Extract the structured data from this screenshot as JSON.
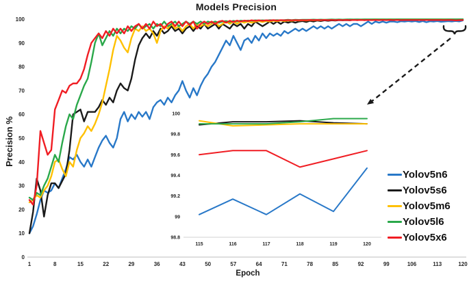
{
  "title": "Models Precision",
  "colors": {
    "axis_line": "#c9c9c9",
    "inset_axis_line": "#d9d9d9",
    "tick_text": "#262626",
    "annotation": "#1a1a1a"
  },
  "legend": {
    "items": [
      {
        "label": "Yolov5n6",
        "color": "#2878c8"
      },
      {
        "label": "Yolov5s6",
        "color": "#1a1a1a"
      },
      {
        "label": "Yolov5m6",
        "color": "#ffc000"
      },
      {
        "label": "Yolov5l6",
        "color": "#2aa84a"
      },
      {
        "label": "Yolov5x6",
        "color": "#f01d23"
      }
    ]
  },
  "chart_data": [
    {
      "type": "line",
      "title": "Models Precision",
      "xlabel": "Epoch",
      "ylabel": "Precision %",
      "xlim": [
        1,
        120
      ],
      "ylim": [
        0,
        100
      ],
      "grid": false,
      "legend_position": "right",
      "x_start": 1,
      "x_step": 1,
      "x_ticks": [
        1,
        8,
        15,
        22,
        29,
        36,
        43,
        50,
        57,
        64,
        71,
        78,
        85,
        92,
        99,
        106,
        113,
        120
      ],
      "y_ticks": [
        0,
        10,
        20,
        30,
        40,
        50,
        60,
        70,
        80,
        90,
        100
      ],
      "series": [
        {
          "name": "Yolov5n6",
          "color": "#2878c8",
          "values": [
            10,
            13,
            18,
            24,
            28,
            27,
            28,
            31,
            29,
            33,
            37,
            42,
            41,
            43,
            40,
            38,
            41,
            38,
            42,
            46,
            49,
            51,
            48,
            46,
            50,
            58,
            61,
            57,
            60,
            58,
            61,
            59,
            61,
            58,
            63,
            65,
            66,
            64,
            67,
            65,
            68,
            70,
            74,
            70,
            67,
            71,
            68,
            72,
            75,
            77,
            80,
            82,
            85,
            88,
            91,
            89,
            93,
            90,
            87,
            91,
            92,
            90,
            93,
            91,
            94,
            92,
            94,
            93,
            94,
            93,
            95,
            94,
            95,
            96,
            95,
            96,
            95,
            96,
            97,
            96,
            97,
            96,
            97,
            96,
            97,
            98,
            97,
            98,
            97,
            98,
            98,
            97,
            98,
            99,
            98,
            99,
            98.5,
            99,
            98.5,
            99,
            99,
            98.7,
            99.1,
            99,
            99.2,
            99,
            99.2,
            98.8,
            99.2,
            98.7,
            99.1,
            99,
            99.2,
            98.9,
            99.02,
            99.17,
            99.02,
            99.22,
            99.05,
            99.47
          ]
        },
        {
          "name": "Yolov5s6",
          "color": "#1a1a1a",
          "values": [
            10,
            19,
            33,
            28,
            17,
            26,
            31,
            31,
            29,
            32,
            35,
            45,
            60,
            61,
            62,
            57,
            61,
            61,
            61,
            63,
            66,
            64,
            67,
            65,
            70,
            73,
            71,
            70,
            75,
            83,
            89,
            92,
            94,
            92,
            95,
            93,
            96,
            94,
            95,
            97,
            95,
            96,
            94,
            96,
            97,
            95,
            97,
            96,
            98,
            96,
            97,
            98,
            96,
            98,
            97,
            96,
            98,
            97,
            98,
            96,
            98,
            97,
            99,
            98,
            97,
            98,
            99,
            98,
            99,
            98,
            99,
            98.5,
            99,
            98.5,
            99,
            99.2,
            98.8,
            99.3,
            99,
            99.4,
            99.2,
            99.5,
            99.3,
            99.5,
            99.4,
            99.6,
            99.5,
            99.6,
            99.5,
            99.7,
            99.6,
            99.7,
            99.6,
            99.7,
            99.8,
            99.7,
            99.8,
            99.75,
            99.8,
            99.85,
            99.8,
            99.85,
            99.9,
            99.85,
            99.9,
            99.88,
            99.9,
            99.89,
            99.9,
            99.9,
            99.9,
            99.9,
            99.9,
            99.9,
            99.89,
            99.92,
            99.92,
            99.93,
            99.91,
            99.9
          ]
        },
        {
          "name": "Yolov5m6",
          "color": "#ffc000",
          "values": [
            23,
            24,
            26,
            25,
            28,
            30,
            34,
            40,
            41,
            37,
            34,
            40,
            38,
            45,
            50,
            52,
            55,
            53,
            56,
            60,
            65,
            72,
            79,
            87,
            93,
            91,
            88,
            86,
            92,
            96,
            95,
            97,
            95,
            96,
            94,
            90,
            95,
            97,
            96,
            98,
            96,
            97,
            95,
            97,
            98,
            96,
            98,
            97,
            98,
            97,
            98,
            99,
            97,
            98,
            99,
            98,
            99,
            98,
            99,
            98.5,
            99,
            98.5,
            99,
            99.2,
            98.8,
            99.2,
            99,
            99.3,
            99.1,
            99.4,
            99.2,
            99.4,
            99.3,
            99.5,
            99.4,
            99.5,
            99.4,
            99.6,
            99.5,
            99.6,
            99.5,
            99.7,
            99.6,
            99.7,
            99.6,
            99.7,
            99.75,
            99.7,
            99.8,
            99.75,
            99.8,
            99.8,
            99.85,
            99.8,
            99.85,
            99.9,
            99.85,
            99.9,
            99.88,
            99.9,
            99.9,
            99.88,
            99.9,
            99.9,
            99.9,
            99.9,
            99.9,
            99.9,
            99.9,
            99.9,
            99.9,
            99.9,
            99.9,
            99.92,
            99.93,
            99.88,
            99.89,
            99.9,
            99.9,
            99.9
          ]
        },
        {
          "name": "Yolov5l6",
          "color": "#2aa84a",
          "values": [
            25,
            24,
            27,
            26,
            30,
            33,
            38,
            43,
            40,
            48,
            55,
            60,
            58,
            64,
            68,
            72,
            75,
            82,
            90,
            94,
            89,
            92,
            95,
            93,
            96,
            94,
            96,
            95,
            97,
            96,
            98,
            96,
            97,
            98,
            96,
            98,
            97,
            99,
            97,
            98,
            99,
            97,
            98,
            99,
            98,
            99,
            98,
            99,
            98,
            99,
            98.5,
            99,
            98.5,
            99,
            99.2,
            98.8,
            99.3,
            99,
            99.4,
            99.2,
            99.4,
            99.3,
            99.5,
            99.4,
            99.5,
            99.4,
            99.6,
            99.5,
            99.6,
            99.5,
            99.6,
            99.7,
            99.6,
            99.7,
            99.65,
            99.7,
            99.75,
            99.7,
            99.8,
            99.75,
            99.8,
            99.75,
            99.8,
            99.85,
            99.8,
            99.85,
            99.8,
            99.85,
            99.9,
            99.85,
            99.9,
            99.85,
            99.9,
            99.9,
            99.9,
            99.9,
            99.9,
            99.9,
            99.9,
            99.9,
            99.9,
            99.9,
            99.9,
            99.9,
            99.9,
            99.9,
            99.9,
            99.9,
            99.9,
            99.9,
            99.9,
            99.9,
            99.9,
            99.9,
            99.9,
            99.9,
            99.9,
            99.92,
            99.95,
            99.95
          ]
        },
        {
          "name": "Yolov5x6",
          "color": "#f01d23",
          "values": [
            24,
            22,
            30,
            53,
            48,
            43,
            45,
            62,
            66,
            70,
            69,
            72,
            73,
            73,
            75,
            79,
            85,
            90,
            92,
            94,
            92,
            95,
            93,
            96,
            94,
            96,
            94,
            97,
            95,
            97,
            98,
            96,
            98,
            96,
            99,
            97,
            98,
            96,
            98,
            99,
            97,
            99,
            97,
            99,
            97.5,
            99,
            96,
            98,
            99,
            98,
            99,
            98,
            99,
            99.3,
            98.5,
            99.3,
            98.8,
            99.4,
            99,
            99.4,
            99.2,
            99.5,
            99.3,
            99.5,
            99.3,
            99.5,
            99.4,
            99.6,
            99.4,
            99.6,
            99.5,
            99.6,
            99.5,
            99.6,
            99.55,
            99.6,
            99.55,
            99.65,
            99.6,
            99.65,
            99.6,
            99.65,
            99.6,
            99.65,
            99.6,
            99.65,
            99.6,
            99.65,
            99.6,
            99.65,
            99.6,
            99.65,
            99.6,
            99.65,
            99.6,
            99.65,
            99.6,
            99.65,
            99.6,
            99.65,
            99.6,
            99.65,
            99.6,
            99.62,
            99.64,
            99.62,
            99.64,
            99.63,
            99.64,
            99.62,
            99.64,
            99.63,
            99.64,
            99.62,
            99.6,
            99.64,
            99.64,
            99.48,
            99.56,
            99.64
          ]
        }
      ]
    },
    {
      "type": "line",
      "title": "",
      "xlabel": "",
      "ylabel": "",
      "xlim": [
        115,
        120
      ],
      "ylim": [
        98.8,
        100
      ],
      "grid": false,
      "x": [
        115,
        116,
        117,
        118,
        119,
        120
      ],
      "x_ticks": [
        115,
        116,
        117,
        118,
        119,
        120
      ],
      "y_ticks": [
        98.8,
        99,
        99.2,
        99.4,
        99.6,
        99.8,
        100
      ],
      "series": [
        {
          "name": "Yolov5n6",
          "color": "#2878c8",
          "values": [
            99.02,
            99.17,
            99.02,
            99.22,
            99.05,
            99.47
          ]
        },
        {
          "name": "Yolov5s6",
          "color": "#1a1a1a",
          "values": [
            99.89,
            99.92,
            99.92,
            99.93,
            99.91,
            99.9
          ]
        },
        {
          "name": "Yolov5m6",
          "color": "#ffc000",
          "values": [
            99.93,
            99.88,
            99.89,
            99.9,
            99.9,
            99.9
          ]
        },
        {
          "name": "Yolov5l6",
          "color": "#2aa84a",
          "values": [
            99.9,
            99.9,
            99.9,
            99.92,
            99.95,
            99.95
          ]
        },
        {
          "name": "Yolov5x6",
          "color": "#f01d23",
          "values": [
            99.6,
            99.64,
            99.64,
            99.48,
            99.56,
            99.64
          ]
        }
      ]
    }
  ]
}
